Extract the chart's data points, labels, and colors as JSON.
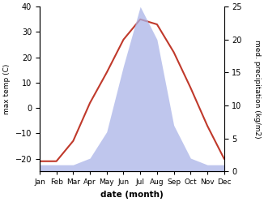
{
  "months": [
    "Jan",
    "Feb",
    "Mar",
    "Apr",
    "May",
    "Jun",
    "Jul",
    "Aug",
    "Sep",
    "Oct",
    "Nov",
    "Dec"
  ],
  "temperature": [
    -21,
    -21,
    -13,
    2,
    14,
    27,
    35,
    33,
    22,
    8,
    -7,
    -20
  ],
  "precipitation": [
    1,
    1,
    1,
    2,
    6,
    16,
    25,
    20,
    7,
    2,
    1,
    1
  ],
  "temp_ylim": [
    -25,
    40
  ],
  "precip_ylim": [
    0,
    25
  ],
  "temp_color": "#c0392b",
  "precip_fill_color": "#aab4e8",
  "precip_fill_alpha": 0.75,
  "xlabel": "date (month)",
  "ylabel_left": "max temp (C)",
  "ylabel_right": "med. precipitation (kg/m2)",
  "background_color": "#ffffff",
  "temp_yticks": [
    -20,
    -10,
    0,
    10,
    20,
    30,
    40
  ],
  "precip_yticks": [
    0,
    5,
    10,
    15,
    20,
    25
  ]
}
